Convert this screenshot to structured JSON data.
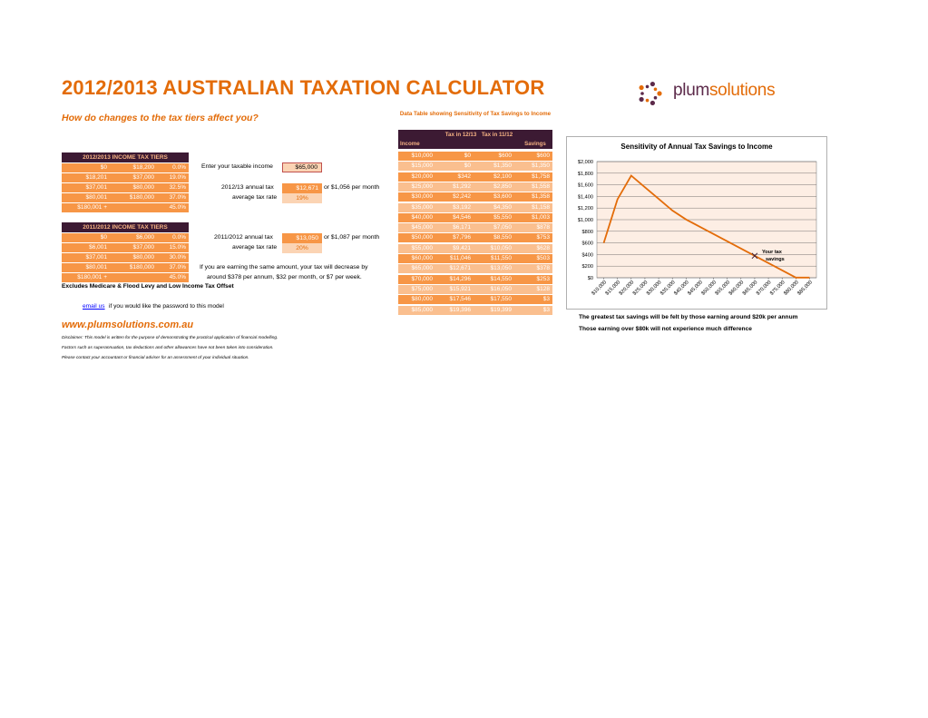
{
  "title": "2012/2013 AUSTRALIAN TAXATION CALCULATOR",
  "subtitle": "How do changes to the tax tiers affect you?",
  "logo": {
    "brand_a": "plum",
    "brand_b": "solutions"
  },
  "tiers_1213": {
    "heading": "2012/2013 INCOME TAX TIERS",
    "rows": [
      [
        "$0",
        "$18,200",
        "0.0%"
      ],
      [
        "$18,201",
        "$37,000",
        "19.0%"
      ],
      [
        "$37,001",
        "$80,000",
        "32.5%"
      ],
      [
        "$80,001",
        "$180,000",
        "37.0%"
      ],
      [
        "$180,001 +",
        "",
        "45.0%"
      ]
    ]
  },
  "tiers_1112": {
    "heading": "2011/2012 INCOME TAX TIERS",
    "rows": [
      [
        "$0",
        "$6,000",
        "0.0%"
      ],
      [
        "$6,001",
        "$37,000",
        "15.0%"
      ],
      [
        "$37,001",
        "$80,000",
        "30.0%"
      ],
      [
        "$80,001",
        "$180,000",
        "37.0%"
      ],
      [
        "$180,001 +",
        "",
        "45.0%"
      ]
    ]
  },
  "calc": {
    "income_label": "Enter your taxable income",
    "income_value": "$65,000",
    "tax1213_label": "2012/13 annual tax",
    "tax1213_value": "$12,671",
    "tax1213_month": "or $1,056 per month",
    "rate1213_label": "average tax rate",
    "rate1213_value": "19%",
    "tax1112_label": "2011/2012 annual tax",
    "tax1112_value": "$13,050",
    "tax1112_month": "or $1,087 per month",
    "rate1112_label": "average tax rate",
    "rate1112_value": "20%",
    "summary_line1": "If you are earning the same amount, your tax will decrease by",
    "summary_line2": "around $378 per annum, $32 per month, or $7 per week."
  },
  "excludes_note": "Excludes Medicare & Flood Levy and Low Income Tax Offset",
  "email": {
    "link": "email us",
    "text": "if you would like the password to this model"
  },
  "website": "www.plumsolutions.com.au",
  "disclaimer": [
    "Disclaimer: This model is written for the purpose of demonstrating the practical application of financial modelling.",
    "Factors such as superannuation, tax deductions and other allowances have not been taken into consideration.",
    "Please contact your accountant or financial adviser for an assessment of your individual situation."
  ],
  "data_table": {
    "title": "Data Table showing Sensitivity of Tax Savings to Income",
    "headers": [
      "Income",
      "Tax in 12/13",
      "Tax in 11/12",
      "Savings"
    ],
    "rows": [
      [
        "$10,000",
        "$0",
        "$600",
        "$600"
      ],
      [
        "$15,000",
        "$0",
        "$1,350",
        "$1,350"
      ],
      [
        "$20,000",
        "$342",
        "$2,100",
        "$1,758"
      ],
      [
        "$25,000",
        "$1,292",
        "$2,850",
        "$1,558"
      ],
      [
        "$30,000",
        "$2,242",
        "$3,600",
        "$1,358"
      ],
      [
        "$35,000",
        "$3,192",
        "$4,350",
        "$1,158"
      ],
      [
        "$40,000",
        "$4,546",
        "$5,550",
        "$1,003"
      ],
      [
        "$45,000",
        "$6,171",
        "$7,050",
        "$878"
      ],
      [
        "$50,000",
        "$7,796",
        "$8,550",
        "$753"
      ],
      [
        "$55,000",
        "$9,421",
        "$10,050",
        "$628"
      ],
      [
        "$60,000",
        "$11,046",
        "$11,550",
        "$503"
      ],
      [
        "$65,000",
        "$12,671",
        "$13,050",
        "$378"
      ],
      [
        "$70,000",
        "$14,296",
        "$14,550",
        "$253"
      ],
      [
        "$75,000",
        "$15,921",
        "$16,050",
        "$128"
      ],
      [
        "$80,000",
        "$17,546",
        "$17,550",
        "$3"
      ],
      [
        "$85,000",
        "$19,396",
        "$19,399",
        "$3"
      ]
    ]
  },
  "chart_data": {
    "type": "line",
    "title": "Sensitivity of Annual Tax Savings to Income",
    "categories": [
      "$10,000",
      "$15,000",
      "$20,000",
      "$25,000",
      "$30,000",
      "$35,000",
      "$40,000",
      "$45,000",
      "$50,000",
      "$55,000",
      "$60,000",
      "$65,000",
      "$70,000",
      "$75,000",
      "$80,000",
      "$85,000"
    ],
    "series": [
      {
        "values": [
          600,
          1350,
          1758,
          1558,
          1358,
          1158,
          1003,
          878,
          753,
          628,
          503,
          378,
          253,
          128,
          3,
          3
        ],
        "color": "#e36c09"
      }
    ],
    "marker": {
      "label": "Your tax savings",
      "category": "$65,000",
      "value": 378
    },
    "yticks": [
      "$0",
      "$200",
      "$400",
      "$600",
      "$800",
      "$1,000",
      "$1,200",
      "$1,400",
      "$1,600",
      "$1,800",
      "$2,000"
    ],
    "ylim": [
      0,
      2000
    ],
    "grid": true,
    "plot_background": "#fdeee4"
  },
  "chart_notes": [
    "The greatest tax savings will be felt by those earning around $20k per annum",
    "Those earning over $80k will not experience much difference"
  ],
  "colors": {
    "accent": "#e36c09",
    "tier_fill": "#f79646",
    "tier_fill_light": "#fabf8f",
    "header_dark": "#3c1a33",
    "input_fill": "#fbd4b4"
  }
}
